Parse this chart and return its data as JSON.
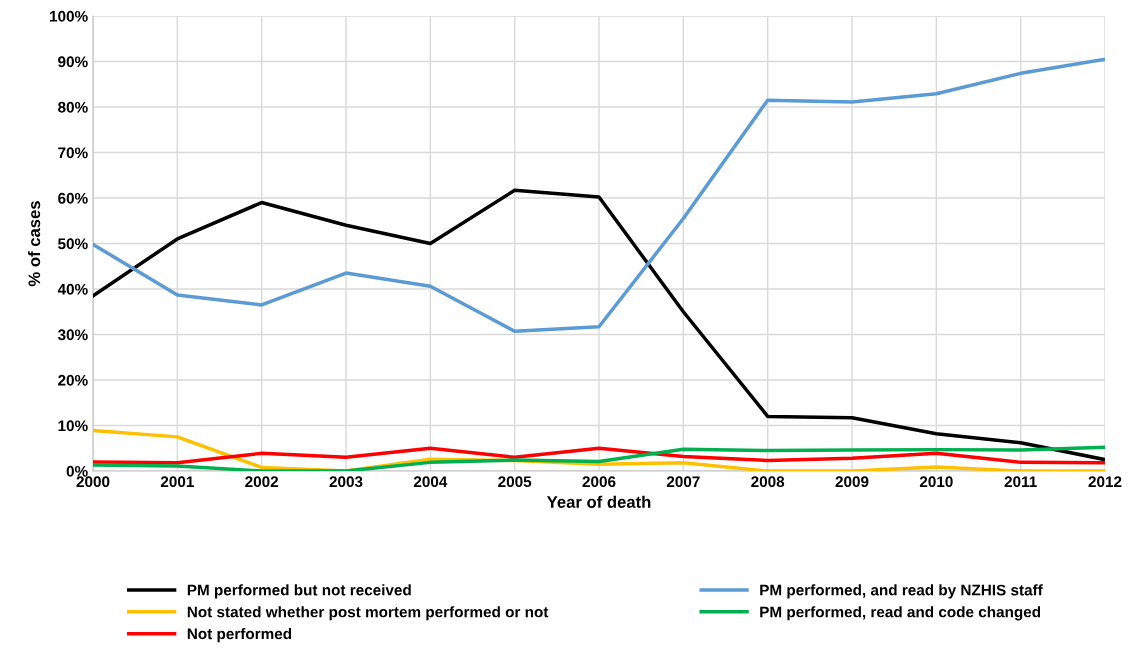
{
  "chart_data": {
    "type": "line",
    "xlabel": "Year of death",
    "ylabel": "% of cases",
    "x": [
      2000,
      2001,
      2002,
      2003,
      2004,
      2005,
      2006,
      2007,
      2008,
      2009,
      2010,
      2011,
      2012
    ],
    "xlim": [
      2000,
      2012
    ],
    "xticks": [
      2000,
      2001,
      2002,
      2003,
      2004,
      2005,
      2006,
      2007,
      2008,
      2009,
      2010,
      2011,
      2012
    ],
    "ylim": [
      0,
      100
    ],
    "yticks": [
      {
        "value": 0,
        "label": "0%"
      },
      {
        "value": 10,
        "label": "10%"
      },
      {
        "value": 20,
        "label": "20%"
      },
      {
        "value": 30,
        "label": "30%"
      },
      {
        "value": 40,
        "label": "40%"
      },
      {
        "value": 50,
        "label": "50%"
      },
      {
        "value": 60,
        "label": "60%"
      },
      {
        "value": 70,
        "label": "70%"
      },
      {
        "value": 80,
        "label": "80%"
      },
      {
        "value": 90,
        "label": "90%"
      },
      {
        "value": 100,
        "label": "100%"
      }
    ],
    "grid": true,
    "legend": "bottom",
    "marker": "none",
    "line_style": "solid",
    "series": [
      {
        "name": "PM performed but not received",
        "color": "#000000",
        "values": [
          38.5,
          51,
          59,
          54,
          50,
          61.7,
          60.2,
          35,
          12,
          11.7,
          8.2,
          6.2,
          2.5
        ]
      },
      {
        "name": "Not stated whether post mortem performed or not",
        "color": "#ffc000",
        "values": [
          8.9,
          7.5,
          0.8,
          0,
          2.6,
          2.3,
          1.5,
          1.8,
          0,
          0,
          0.9,
          0,
          0
        ]
      },
      {
        "name": "Not performed",
        "color": "#ff0000",
        "values": [
          2,
          1.8,
          3.9,
          3,
          5,
          3,
          5,
          3.2,
          2.3,
          2.8,
          3.9,
          1.9,
          1.8
        ]
      },
      {
        "name": "PM performed, and read by NZHIS staff",
        "color": "#5b9bd5",
        "values": [
          49.8,
          38.7,
          36.5,
          43.5,
          40.6,
          30.7,
          31.7,
          55.5,
          81.5,
          81.1,
          82.9,
          87.4,
          90.5
        ]
      },
      {
        "name": "PM performed, read and code changed",
        "color": "#00b050",
        "values": [
          1.3,
          1.1,
          0,
          0,
          1.9,
          2.4,
          2.1,
          4.8,
          4.5,
          4.6,
          4.7,
          4.6,
          5.2
        ]
      }
    ]
  }
}
